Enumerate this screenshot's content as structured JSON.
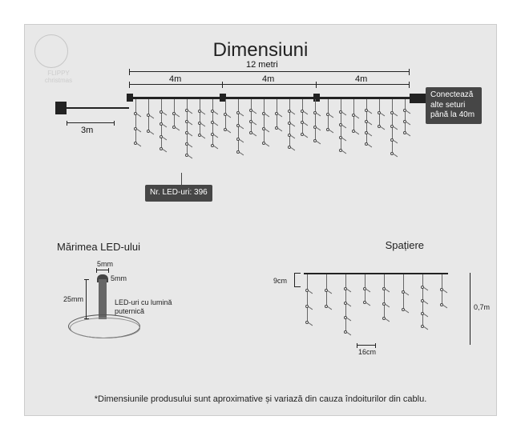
{
  "title": "Dimensiuni",
  "logo_text": "FLIPPY christmas",
  "main_length": "12 metri",
  "segment_label": "4m",
  "lead_cable": "3m",
  "connect_note": "Conectează\nalte seturi\npână la 40m",
  "led_count_label": "Nr. LED-uri: 396",
  "led_size_title": "Mărimea LED-ului",
  "led_width": "5mm",
  "led_cap": "5mm",
  "led_height": "25mm",
  "led_note": "LED-uri cu lumină\nputernică",
  "spacing_title": "Spațiere",
  "spacing_h": "9cm",
  "spacing_gap": "16cm",
  "spacing_drop": "0,7m",
  "footnote": "*Dimensiunile produsului sunt aproximative și variază din cauza îndoiturilor din cablu.",
  "colors": {
    "bg": "#e8e8e8",
    "badge": "#464646",
    "line": "#222222"
  },
  "strand_heights": [
    55,
    40,
    62,
    35,
    70,
    45,
    58,
    38,
    66,
    42,
    55,
    36,
    60,
    44,
    52,
    38,
    64,
    40,
    56,
    34,
    68,
    42
  ],
  "spacing_strand_heights": [
    60,
    40,
    72,
    35,
    55,
    44,
    65,
    38
  ]
}
